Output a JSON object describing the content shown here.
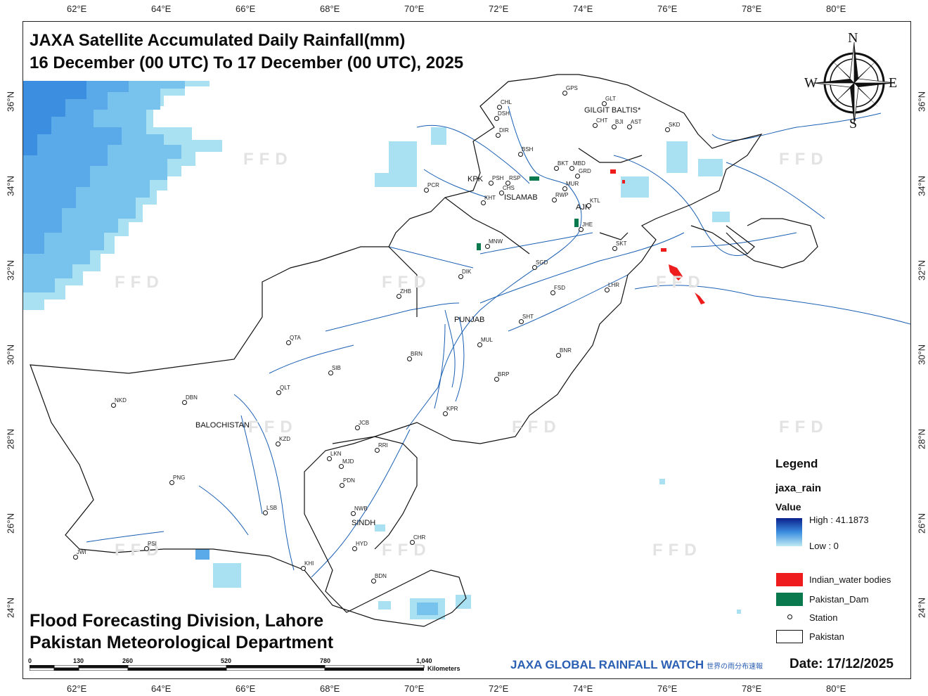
{
  "title": {
    "line1": "JAXA Satellite Accumulated Daily Rainfall(mm)",
    "line2": "16 December (00 UTC) To 17 December (00 UTC), 2025"
  },
  "footer": {
    "line1": "Flood Forecasting Division, Lahore",
    "line2": "Pakistan Meteorological Department"
  },
  "longitude_ticks": [
    "62°E",
    "64°E",
    "66°E",
    "68°E",
    "70°E",
    "72°E",
    "74°E",
    "76°E",
    "78°E",
    "80°E"
  ],
  "latitude_ticks": [
    "36°N",
    "34°N",
    "32°N",
    "30°N",
    "28°N",
    "26°N",
    "24°N"
  ],
  "watermark": "FFD",
  "compass": {
    "n": "N",
    "s": "S",
    "e": "E",
    "w": "W"
  },
  "regions": {
    "gilgit": "GILGIT BALTIS*",
    "kpk": "KPK",
    "islamabad": "ISLAMAB",
    "ajk": "AJK",
    "punjab": "PUNJAB",
    "balochistan": "BALOCHISTAN",
    "sindh": "SINDH"
  },
  "stations": [
    "CHL",
    "DSH",
    "DIR",
    "GPS",
    "GLT",
    "CHT",
    "BJI",
    "AST",
    "SKD",
    "BSH",
    "BKT",
    "MBD",
    "GRD",
    "MUR",
    "PSH",
    "RSP",
    "CHS",
    "KHT",
    "PCR",
    "KTL",
    "RWP",
    "JHE",
    "MNW",
    "SKT",
    "SGD",
    "LHR",
    "FSD",
    "DIK",
    "ZHB",
    "SHT",
    "MUL",
    "QTA",
    "BRN",
    "BNR",
    "SIB",
    "BRP",
    "QLT",
    "NKD",
    "DBN",
    "KPR",
    "JCB",
    "KZD",
    "RRI",
    "LKN",
    "MJD",
    "PDN",
    "PNG",
    "NWB",
    "LSB",
    "HYD",
    "CHR",
    "PSI",
    "JWI",
    "KHI",
    "BDN"
  ],
  "legend": {
    "title": "Legend",
    "layer": "jaxa_rain",
    "value_label": "Value",
    "high": "High : 41.1873",
    "low": "Low : 0",
    "items": [
      {
        "label": "Indian_water bodies",
        "color": "#ee1c1c"
      },
      {
        "label": "Pakistan_Dam",
        "color": "#0a7a4e"
      },
      {
        "label": "Station"
      },
      {
        "label": "Pakistan"
      }
    ],
    "rain_high_color": "#0b1f8c",
    "rain_low_color": "#bfeaf2"
  },
  "scale": {
    "labels": [
      "0",
      "130",
      "260",
      "520",
      "780",
      "1,040"
    ],
    "unit": "Kilometers"
  },
  "brand": {
    "name": "JAXA GLOBAL RAINFALL WATCH",
    "sub": "世界の雨分布速報"
  },
  "date": "Date: 17/12/2025",
  "colors": {
    "river": "#1a5fb4",
    "border": "#111111",
    "rain_dark": "#3b8ee0",
    "rain_mid": "#78c3ee",
    "rain_light": "#a9e1f2"
  }
}
